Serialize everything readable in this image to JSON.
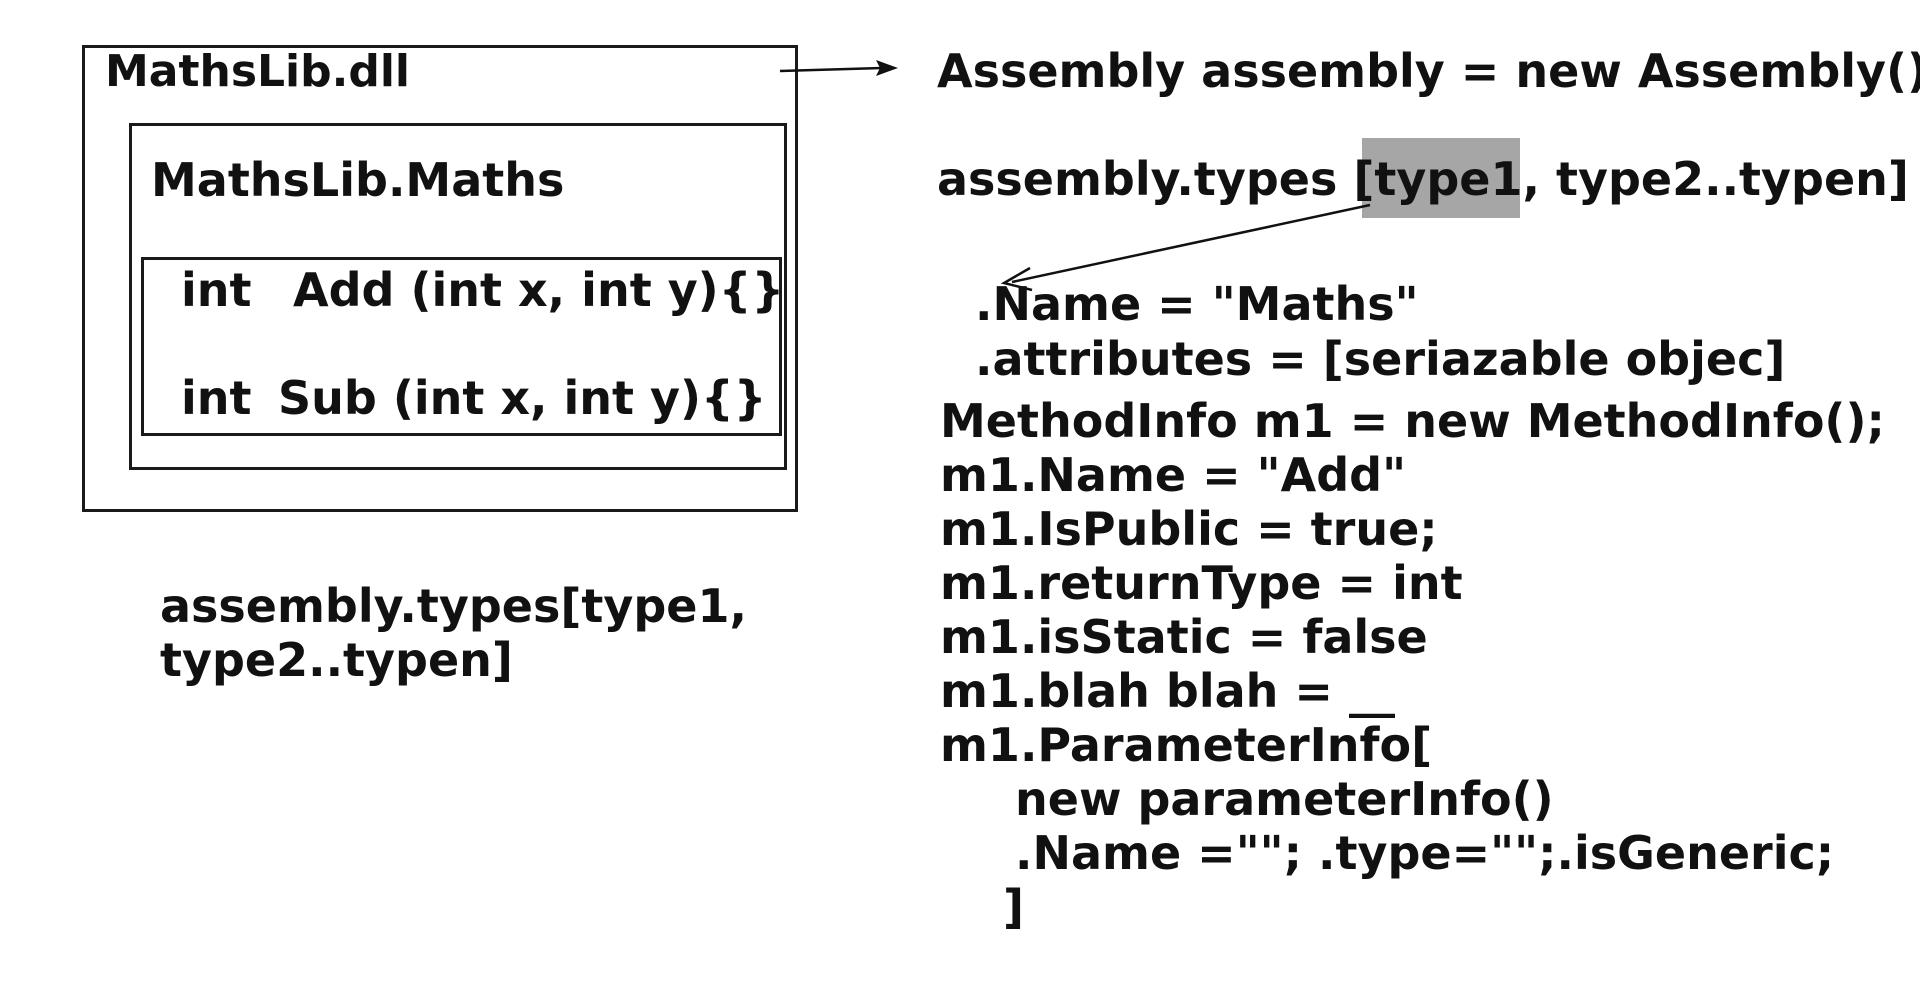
{
  "colors": {
    "ink": "#111111",
    "highlight": "#a6a6a6"
  },
  "left_diagram": {
    "dll_label": "MathsLib.dll",
    "class_label": "MathsLib.Maths",
    "methods": [
      {
        "type": "int",
        "signature": "Add (int x, int y){}"
      },
      {
        "type": "int",
        "signature": "Sub (int x, int y){}"
      }
    ],
    "note_line1": "assembly.types[type1,",
    "note_line2": "type2..typen]"
  },
  "right_code": {
    "assembly_line": "Assembly assembly = new Assembly()",
    "types_prefix": "assembly.types [",
    "types_highlight": "type1",
    "types_suffix": ", type2..typen]",
    "type_props": [
      ".Name = \"Maths\"",
      ".attributes = [seriazable objec]"
    ],
    "method_lines": [
      "MethodInfo m1 = new MethodInfo();",
      "m1.Name = \"Add\"",
      "m1.IsPublic = true;",
      "m1.returnType = int",
      "m1.isStatic = false",
      "m1.blah blah = __",
      "m1.ParameterInfo["
    ],
    "param_lines": [
      "new parameterInfo()",
      ".Name =\"\"; .type=\"\";.isGeneric;"
    ],
    "closing_bracket": "]"
  }
}
